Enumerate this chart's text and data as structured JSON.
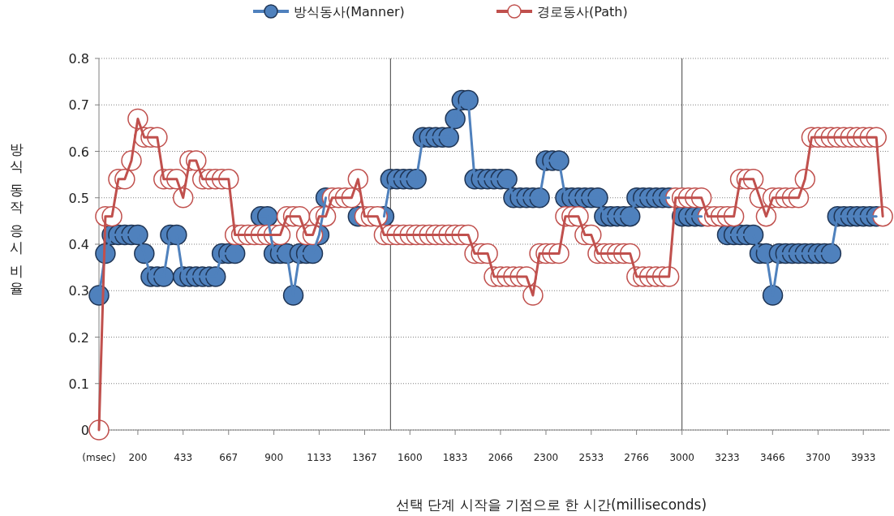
{
  "chart_data": {
    "type": "line",
    "xlabel": "선택 단계 시작을 기점으로 한 시간(milliseconds)",
    "ylabel": "방식 동작 응시 비율",
    "x": [
      0,
      33,
      67,
      100,
      133,
      167,
      200,
      233,
      267,
      300,
      333,
      367,
      400,
      433,
      467,
      500,
      533,
      567,
      600,
      633,
      667,
      700,
      733,
      767,
      800,
      833,
      867,
      900,
      933,
      967,
      1000,
      1033,
      1067,
      1100,
      1133,
      1167,
      1200,
      1233,
      1267,
      1300,
      1333,
      1367,
      1400,
      1433,
      1467,
      1500,
      1533,
      1567,
      1600,
      1633,
      1667,
      1700,
      1733,
      1767,
      1800,
      1833,
      1867,
      1900,
      1933,
      1967,
      2000,
      2033,
      2067,
      2100,
      2133,
      2167,
      2200,
      2233,
      2267,
      2300,
      2333,
      2367,
      2400,
      2433,
      2467,
      2500,
      2533,
      2567,
      2600,
      2633,
      2667,
      2700,
      2733,
      2767,
      2800,
      2833,
      2867,
      2900,
      2933,
      2967,
      3000,
      3033,
      3067,
      3100,
      3133,
      3167,
      3200,
      3233,
      3267,
      3300,
      3333,
      3367,
      3400,
      3433,
      3467,
      3500,
      3533,
      3567,
      3600,
      3633,
      3667,
      3700,
      3733,
      3767,
      3800,
      3833,
      3867,
      3900,
      3933,
      3967,
      4000,
      4033
    ],
    "series": [
      {
        "name": "방식동사(Manner)",
        "color": "#4f81bd",
        "values": [
          0.29,
          0.38,
          0.42,
          0.42,
          0.42,
          0.42,
          0.42,
          0.38,
          0.33,
          0.33,
          0.33,
          0.42,
          0.42,
          0.33,
          0.33,
          0.33,
          0.33,
          0.33,
          0.33,
          0.38,
          0.38,
          0.38,
          null,
          null,
          null,
          0.46,
          0.46,
          0.38,
          0.38,
          0.38,
          0.29,
          0.38,
          0.38,
          0.38,
          0.42,
          0.5,
          null,
          null,
          null,
          null,
          0.46,
          null,
          null,
          null,
          0.46,
          0.54,
          0.54,
          0.54,
          0.54,
          0.54,
          0.63,
          0.63,
          0.63,
          0.63,
          0.63,
          0.67,
          0.71,
          0.71,
          0.54,
          0.54,
          0.54,
          0.54,
          0.54,
          0.54,
          0.5,
          0.5,
          0.5,
          0.5,
          0.5,
          0.58,
          0.58,
          0.58,
          0.5,
          0.5,
          0.5,
          0.5,
          0.5,
          0.5,
          0.46,
          0.46,
          0.46,
          0.46,
          0.46,
          0.5,
          0.5,
          0.5,
          0.5,
          0.5,
          0.5,
          null,
          0.46,
          0.46,
          0.46,
          0.46,
          null,
          null,
          null,
          0.42,
          0.42,
          0.42,
          0.42,
          0.42,
          0.38,
          0.38,
          0.29,
          0.38,
          0.38,
          0.38,
          0.38,
          0.38,
          0.38,
          0.38,
          0.38,
          0.38,
          0.46,
          0.46,
          0.46,
          0.46,
          0.46,
          0.46,
          0.46,
          null
        ]
      },
      {
        "name": "경로동사(Path)",
        "color": "#c0504d",
        "values": [
          0,
          0.46,
          0.46,
          0.54,
          0.54,
          0.58,
          0.67,
          0.63,
          0.63,
          0.63,
          0.54,
          0.54,
          0.54,
          0.5,
          0.58,
          0.58,
          0.54,
          0.54,
          0.54,
          0.54,
          0.54,
          0.42,
          0.42,
          0.42,
          0.42,
          0.42,
          0.42,
          0.42,
          0.42,
          0.46,
          0.46,
          0.46,
          0.42,
          0.42,
          0.46,
          0.46,
          0.5,
          0.5,
          0.5,
          0.5,
          0.54,
          0.46,
          0.46,
          0.46,
          0.42,
          0.42,
          0.42,
          0.42,
          0.42,
          0.42,
          0.42,
          0.42,
          0.42,
          0.42,
          0.42,
          0.42,
          0.42,
          0.42,
          0.38,
          0.38,
          0.38,
          0.33,
          0.33,
          0.33,
          0.33,
          0.33,
          0.33,
          0.29,
          0.38,
          0.38,
          0.38,
          0.38,
          0.46,
          0.46,
          0.46,
          0.42,
          0.42,
          0.38,
          0.38,
          0.38,
          0.38,
          0.38,
          0.38,
          0.33,
          0.33,
          0.33,
          0.33,
          0.33,
          0.33,
          0.5,
          0.5,
          0.5,
          0.5,
          0.5,
          0.46,
          0.46,
          0.46,
          0.46,
          0.46,
          0.54,
          0.54,
          0.54,
          0.5,
          0.46,
          0.5,
          0.5,
          0.5,
          0.5,
          0.5,
          0.54,
          0.63,
          0.63,
          0.63,
          0.63,
          0.63,
          0.63,
          0.63,
          0.63,
          0.63,
          0.63,
          0.63,
          0.46
        ]
      }
    ],
    "xlim": [
      0,
      4070
    ],
    "xticks": [
      {
        "value": 0,
        "label": "(msec)"
      },
      200,
      433,
      667,
      900,
      1133,
      1367,
      1600,
      1833,
      2066,
      2300,
      2533,
      2766,
      3000,
      3233,
      3466,
      3700,
      3933
    ],
    "ylim": [
      0,
      0.8
    ],
    "yticks": [
      0,
      0.1,
      0.2,
      0.3,
      0.4,
      0.5,
      0.6,
      0.7,
      0.8
    ],
    "ref_lines": [
      {
        "axis": "x",
        "value": 1500,
        "color": "#404040"
      },
      {
        "axis": "x",
        "value": 3000,
        "color": "#404040"
      }
    ],
    "grid": "y",
    "legend": "top",
    "marker": "circle",
    "line_style": "solid"
  }
}
